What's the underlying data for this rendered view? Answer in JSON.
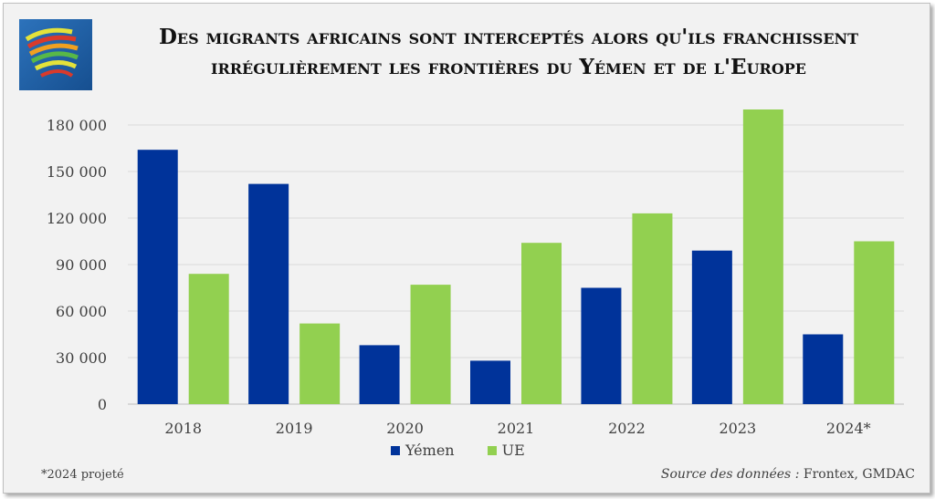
{
  "title": {
    "line1": "Des migrants africains sont interceptés alors qu'ils franchissent",
    "line2": "irrégulièrement les frontières du Yémen et de l'Europe"
  },
  "logo": {
    "icon": "africa-stripes-logo-icon"
  },
  "chart_data": {
    "type": "bar",
    "title": "Des migrants africains sont interceptés alors qu'ils franchissent irrégulièrement les frontières du Yémen et de l'Europe",
    "categories": [
      "2018",
      "2019",
      "2020",
      "2021",
      "2022",
      "2023",
      "2024*"
    ],
    "series": [
      {
        "name": "Yémen",
        "color": "#00339a",
        "values": [
          164000,
          142000,
          38000,
          28000,
          75000,
          99000,
          45000
        ]
      },
      {
        "name": "UE",
        "color": "#92d050",
        "values": [
          84000,
          52000,
          77000,
          104000,
          123000,
          190000,
          105000
        ]
      }
    ],
    "ylim": [
      0,
      190000
    ],
    "yticks": [
      0,
      30000,
      60000,
      90000,
      120000,
      150000,
      180000
    ],
    "ytick_labels": [
      "0",
      "30 000",
      "60 000",
      "90 000",
      "120 000",
      "150 000",
      "180 000"
    ],
    "grid": true,
    "legend": "bottom-center",
    "xlabel": "",
    "ylabel": ""
  },
  "footnote": "*2024 projeté",
  "source": {
    "label": "Source des données :",
    "value": "Frontex, GMDAC"
  }
}
